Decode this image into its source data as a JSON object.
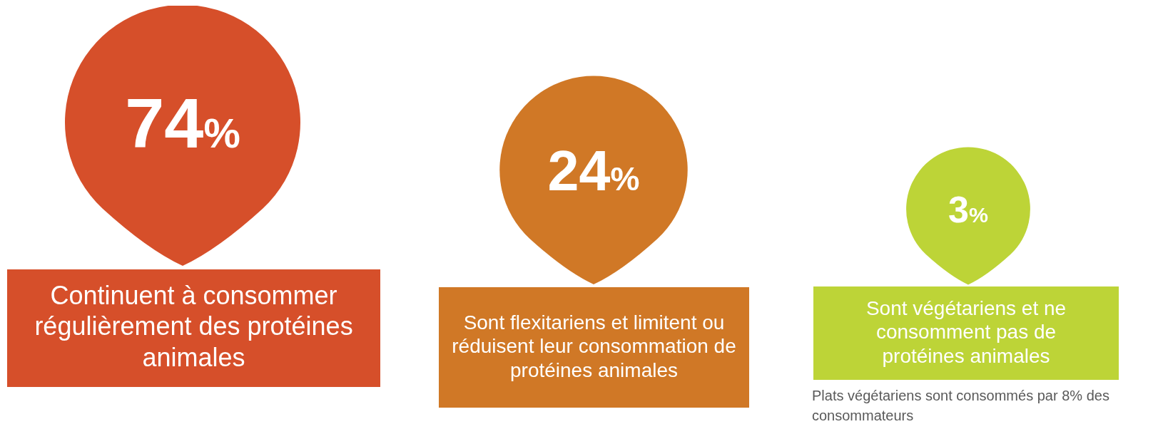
{
  "chart_data": {
    "type": "other",
    "categories": [
      "Continuent à consommer régulièrement des protéines animales",
      "Sont flexitariens et limitent ou réduisent leur consommation de protéines animales",
      "Sont végétariens et ne consomment pas de protéines animales"
    ],
    "values": [
      74,
      24,
      3
    ],
    "value_labels": [
      "74%",
      "24%",
      "3%"
    ],
    "colors": [
      "#d64f2a",
      "#d07826",
      "#bdd437"
    ],
    "annotations": [
      "Plats végétariens sont consommés par 8% des consommateurs"
    ]
  }
}
